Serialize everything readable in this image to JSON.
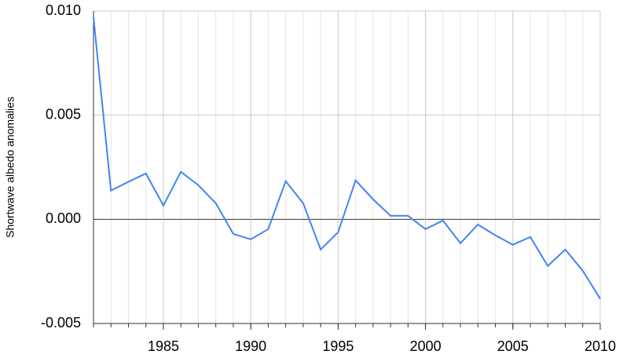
{
  "chart_data": {
    "type": "line",
    "y_label": "Shortwave albedo anomalies",
    "x": [
      1981,
      1982,
      1983,
      1984,
      1985,
      1986,
      1987,
      1988,
      1989,
      1990,
      1991,
      1992,
      1993,
      1994,
      1995,
      1996,
      1997,
      1998,
      1999,
      2000,
      2001,
      2002,
      2003,
      2004,
      2005,
      2006,
      2007,
      2008,
      2009,
      2010
    ],
    "values": [
      0.0097,
      0.00138,
      0.0018,
      0.0022,
      0.00066,
      0.00228,
      0.00164,
      0.00077,
      -0.0007,
      -0.00096,
      -0.00047,
      0.00183,
      0.00077,
      -0.00145,
      -0.00062,
      0.00187,
      0.00096,
      0.00017,
      0.00017,
      -0.00047,
      -6e-05,
      -0.00115,
      -0.00025,
      -0.00077,
      -0.00122,
      -0.00085,
      -0.00224,
      -0.00145,
      -0.00247,
      -0.00382
    ],
    "color": "#4285f4",
    "xlim": [
      1981,
      2010
    ],
    "xticks": [
      1985,
      1990,
      1995,
      2000,
      2005,
      2010
    ],
    "ylim": [
      -0.005,
      0.01
    ],
    "yticks": [
      -0.005,
      {
        "value": 0,
        "label": "0.000"
      },
      0.005,
      {
        "value": 0.01,
        "label": "0.010"
      }
    ],
    "grid": true,
    "minor_grid": true
  }
}
